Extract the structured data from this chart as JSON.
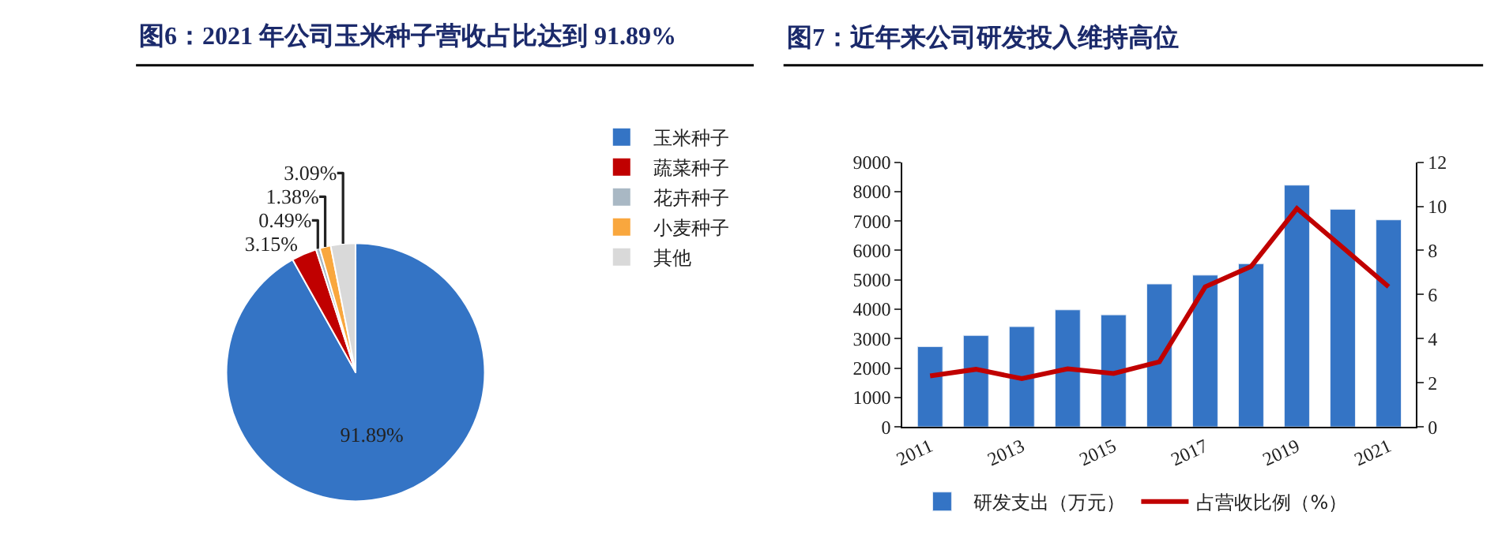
{
  "chart_data": [
    {
      "type": "pie",
      "title": "图6：2021 年公司玉米种子营收占比达到 91.89%",
      "categories": [
        "玉米种子",
        "蔬菜种子",
        "花卉种子",
        "小麦种子",
        "其他"
      ],
      "values": [
        91.89,
        3.15,
        0.49,
        1.38,
        3.09
      ],
      "value_labels": [
        "91.89%",
        "3.15%",
        "0.49%",
        "1.38%",
        "3.09%"
      ],
      "colors": [
        "#3474c5",
        "#c00000",
        "#a9b8c4",
        "#f9a73e",
        "#d9d9d9"
      ],
      "legend": "right"
    },
    {
      "type": "bar",
      "title": "图7：近年来公司研发投入维持高位",
      "categories": [
        "2011",
        null,
        "2013",
        null,
        "2015",
        null,
        "2017",
        null,
        "2019",
        null,
        "2021"
      ],
      "series": [
        {
          "name": "研发支出（万元）",
          "type": "bar",
          "color": "#3474c5",
          "values": [
            2730,
            3110,
            3410,
            3980,
            3810,
            4860,
            5160,
            5550,
            8220,
            7400,
            7040
          ]
        },
        {
          "name": "占营收比例（%）",
          "type": "line",
          "axis": "y2",
          "color": "#c00000",
          "values": [
            2.31,
            2.61,
            2.19,
            2.63,
            2.42,
            2.95,
            6.35,
            7.27,
            9.9,
            8.13,
            6.35
          ]
        }
      ],
      "ylim": [
        0,
        9000
      ],
      "yticks": [
        0,
        1000,
        2000,
        3000,
        4000,
        5000,
        6000,
        7000,
        8000,
        9000
      ],
      "y2lim": [
        0,
        12
      ],
      "y2ticks": [
        0,
        2,
        4,
        6,
        8,
        10,
        12
      ],
      "legend": "bottom",
      "line_style": "solid",
      "marker": "none"
    }
  ]
}
